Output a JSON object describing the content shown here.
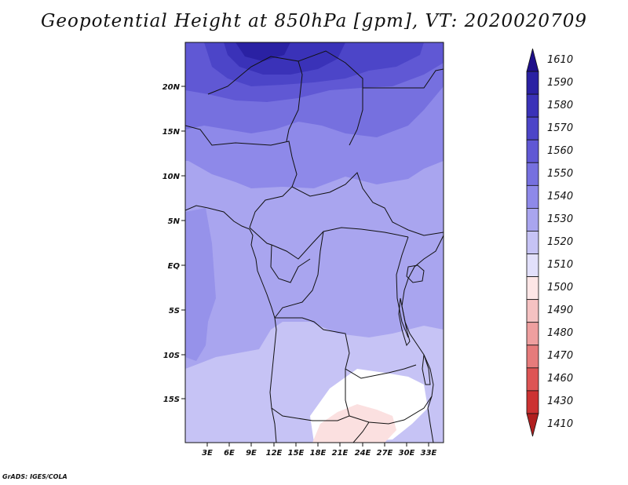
{
  "title": "Geopotential Height at 850hPa [gpm], VT: 2020020709",
  "credit": "GrADS: IGES/COLA",
  "map": {
    "lat_ticks": [
      "20N",
      "15N",
      "10N",
      "5N",
      "EQ",
      "5S",
      "10S",
      "15S"
    ],
    "lon_ticks": [
      "3E",
      "6E",
      "9E",
      "12E",
      "15E",
      "18E",
      "21E",
      "24E",
      "27E",
      "30E",
      "33E"
    ]
  },
  "colorbar": {
    "levels": [
      "1610",
      "1590",
      "1580",
      "1570",
      "1560",
      "1550",
      "1540",
      "1530",
      "1520",
      "1510",
      "1500",
      "1490",
      "1480",
      "1470",
      "1460",
      "1430",
      "1410"
    ],
    "colors": [
      "#1e0f8a",
      "#2a21a3",
      "#3a32b8",
      "#4c45c8",
      "#6058d4",
      "#7670df",
      "#8e89e9",
      "#a9a5ef",
      "#c6c3f5",
      "#e2e0fb",
      "#fde6e6",
      "#f5c2c2",
      "#ee9f9f",
      "#e67b7b",
      "#dd5454",
      "#cc3232",
      "#b01f1f"
    ]
  }
}
